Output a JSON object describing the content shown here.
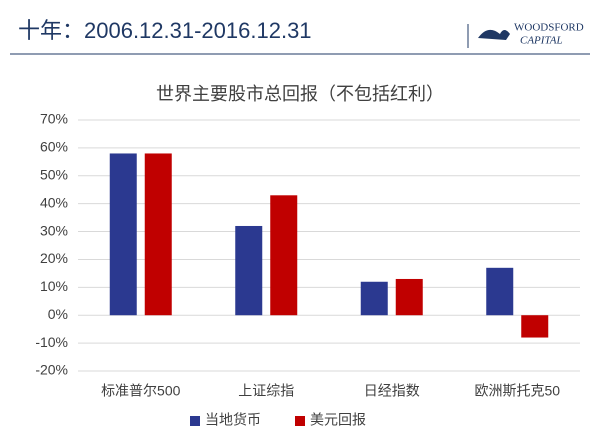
{
  "header": {
    "title": "十年：2006.12.31-2016.12.31",
    "logo": [
      "WOODSFORD",
      "CAPITAL"
    ]
  },
  "chart_data": {
    "type": "bar",
    "title": "世界主要股市总回报（不包括红利）",
    "categories": [
      "标准普尔500",
      "上证综指",
      "日经指数",
      "欧洲斯托克50"
    ],
    "series": [
      {
        "name": "当地货币",
        "color": "#2b3990",
        "values": [
          58,
          32,
          12,
          17
        ]
      },
      {
        "name": "美元回报",
        "color": "#c00000",
        "values": [
          58,
          43,
          13,
          -8
        ]
      }
    ],
    "ylim": [
      -20,
      70
    ],
    "yticks": [
      {
        "value": -20,
        "label": "-20%"
      },
      {
        "value": -10,
        "label": "-10%"
      },
      {
        "value": 0,
        "label": "0%"
      },
      {
        "value": 10,
        "label": "10%"
      },
      {
        "value": 20,
        "label": "20%"
      },
      {
        "value": 30,
        "label": "30%"
      },
      {
        "value": 40,
        "label": "40%"
      },
      {
        "value": 50,
        "label": "50%"
      },
      {
        "value": 60,
        "label": "60%"
      },
      {
        "value": 70,
        "label": "70%"
      }
    ],
    "grid": true,
    "legend": "bottom"
  }
}
